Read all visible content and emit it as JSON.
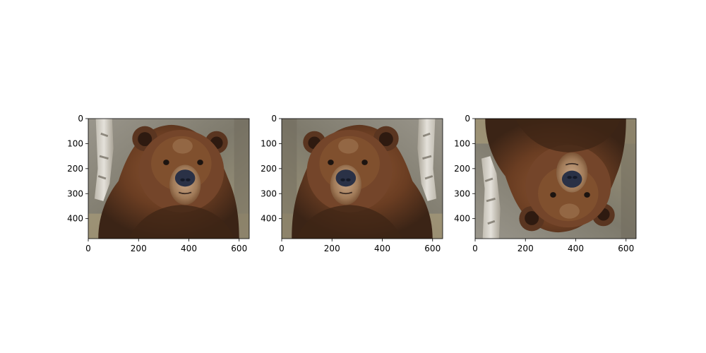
{
  "figure": {
    "panels": [
      {
        "id": "original",
        "orientation": "original",
        "x_ticks": [
          "0",
          "200",
          "400",
          "600"
        ],
        "y_ticks": [
          "0",
          "100",
          "200",
          "300",
          "400"
        ]
      },
      {
        "id": "horizontal-flip",
        "orientation": "flipped-horizontally",
        "x_ticks": [
          "0",
          "200",
          "400",
          "600"
        ],
        "y_ticks": [
          "0",
          "100",
          "200",
          "300",
          "400"
        ]
      },
      {
        "id": "vertical-flip",
        "orientation": "flipped-vertically",
        "x_ticks": [
          "0",
          "200",
          "400",
          "600"
        ],
        "y_ticks": [
          "0",
          "100",
          "200",
          "300",
          "400"
        ]
      }
    ],
    "axes": {
      "x_range": [
        0,
        640
      ],
      "y_range": [
        0,
        480
      ],
      "y_inverted": true,
      "x_tick_values": [
        0,
        200,
        400,
        600
      ],
      "y_tick_values": [
        0,
        100,
        200,
        300,
        400
      ]
    },
    "colors": {
      "background": "#ffffff",
      "fur_dark": "#3b2416",
      "fur_mid": "#6e4024",
      "fur_light": "#9a6a45",
      "muzzle": "#b89474",
      "nose": "#2a3146",
      "bg_blur": "#8a8578",
      "birch": "#d8d4cc"
    }
  }
}
